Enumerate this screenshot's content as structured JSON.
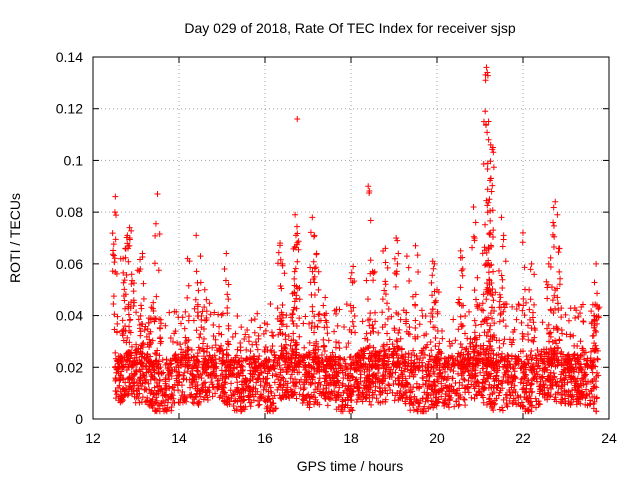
{
  "chart_data": {
    "type": "scatter",
    "title": "Day 029 of 2018, Rate Of TEC Index for receiver sjsp",
    "xlabel": "GPS time / hours",
    "ylabel": "ROTI / TECUs",
    "xlim": [
      12,
      24
    ],
    "ylim": [
      0,
      0.14
    ],
    "xticks": [
      12,
      14,
      16,
      18,
      20,
      22,
      24
    ],
    "xtick_labels": [
      "12",
      "14",
      "16",
      "18",
      "20",
      "22",
      "24"
    ],
    "yticks": [
      0,
      0.02,
      0.04,
      0.06,
      0.08,
      0.1,
      0.12,
      0.14
    ],
    "ytick_labels": [
      "0",
      "0.02",
      "0.04",
      "0.06",
      "0.08",
      "0.1",
      "0.12",
      "0.14"
    ],
    "grid": true,
    "marker": "+",
    "marker_color": "#ff0000",
    "series": [
      {
        "name": "ROTI",
        "x_range": [
          12.5,
          23.75
        ],
        "baseline_range": [
          0.005,
          0.025
        ],
        "notable_points": [
          {
            "x": 12.52,
            "y": 0.086
          },
          {
            "x": 12.51,
            "y": 0.08
          },
          {
            "x": 12.85,
            "y": 0.074
          },
          {
            "x": 12.8,
            "y": 0.071
          },
          {
            "x": 12.75,
            "y": 0.066
          },
          {
            "x": 12.7,
            "y": 0.062
          },
          {
            "x": 12.9,
            "y": 0.056
          },
          {
            "x": 13.15,
            "y": 0.064
          },
          {
            "x": 13.1,
            "y": 0.058
          },
          {
            "x": 13.5,
            "y": 0.087
          },
          {
            "x": 13.4,
            "y": 0.045
          },
          {
            "x": 13.3,
            "y": 0.039
          },
          {
            "x": 14.2,
            "y": 0.062
          },
          {
            "x": 14.4,
            "y": 0.071
          },
          {
            "x": 14.5,
            "y": 0.063
          },
          {
            "x": 14.6,
            "y": 0.05
          },
          {
            "x": 15.1,
            "y": 0.064
          },
          {
            "x": 16.35,
            "y": 0.068
          },
          {
            "x": 16.4,
            "y": 0.06
          },
          {
            "x": 16.75,
            "y": 0.116
          },
          {
            "x": 16.7,
            "y": 0.079
          },
          {
            "x": 16.72,
            "y": 0.071
          },
          {
            "x": 16.68,
            "y": 0.049
          },
          {
            "x": 17.1,
            "y": 0.078
          },
          {
            "x": 17.15,
            "y": 0.071
          },
          {
            "x": 17.2,
            "y": 0.064
          },
          {
            "x": 17.4,
            "y": 0.047
          },
          {
            "x": 18.05,
            "y": 0.059
          },
          {
            "x": 18.4,
            "y": 0.09
          },
          {
            "x": 18.5,
            "y": 0.057
          },
          {
            "x": 18.8,
            "y": 0.066
          },
          {
            "x": 19.05,
            "y": 0.07
          },
          {
            "x": 19.1,
            "y": 0.064
          },
          {
            "x": 19.3,
            "y": 0.063
          },
          {
            "x": 19.5,
            "y": 0.067
          },
          {
            "x": 19.9,
            "y": 0.061
          },
          {
            "x": 20.0,
            "y": 0.05
          },
          {
            "x": 20.55,
            "y": 0.065
          },
          {
            "x": 20.6,
            "y": 0.058
          },
          {
            "x": 20.85,
            "y": 0.082
          },
          {
            "x": 20.9,
            "y": 0.076
          },
          {
            "x": 21.15,
            "y": 0.136
          },
          {
            "x": 21.17,
            "y": 0.134
          },
          {
            "x": 21.13,
            "y": 0.131
          },
          {
            "x": 21.12,
            "y": 0.119
          },
          {
            "x": 21.2,
            "y": 0.108
          },
          {
            "x": 21.3,
            "y": 0.105
          },
          {
            "x": 21.25,
            "y": 0.093
          },
          {
            "x": 21.27,
            "y": 0.088
          },
          {
            "x": 21.22,
            "y": 0.085
          },
          {
            "x": 21.24,
            "y": 0.072
          },
          {
            "x": 21.5,
            "y": 0.078
          },
          {
            "x": 21.55,
            "y": 0.071
          },
          {
            "x": 22.0,
            "y": 0.072
          },
          {
            "x": 22.2,
            "y": 0.06
          },
          {
            "x": 22.75,
            "y": 0.084
          },
          {
            "x": 22.8,
            "y": 0.079
          },
          {
            "x": 22.7,
            "y": 0.076
          },
          {
            "x": 22.85,
            "y": 0.066
          },
          {
            "x": 22.6,
            "y": 0.06
          },
          {
            "x": 23.7,
            "y": 0.06
          },
          {
            "x": 23.72,
            "y": 0.044
          },
          {
            "x": 23.65,
            "y": 0.04
          }
        ]
      }
    ]
  }
}
